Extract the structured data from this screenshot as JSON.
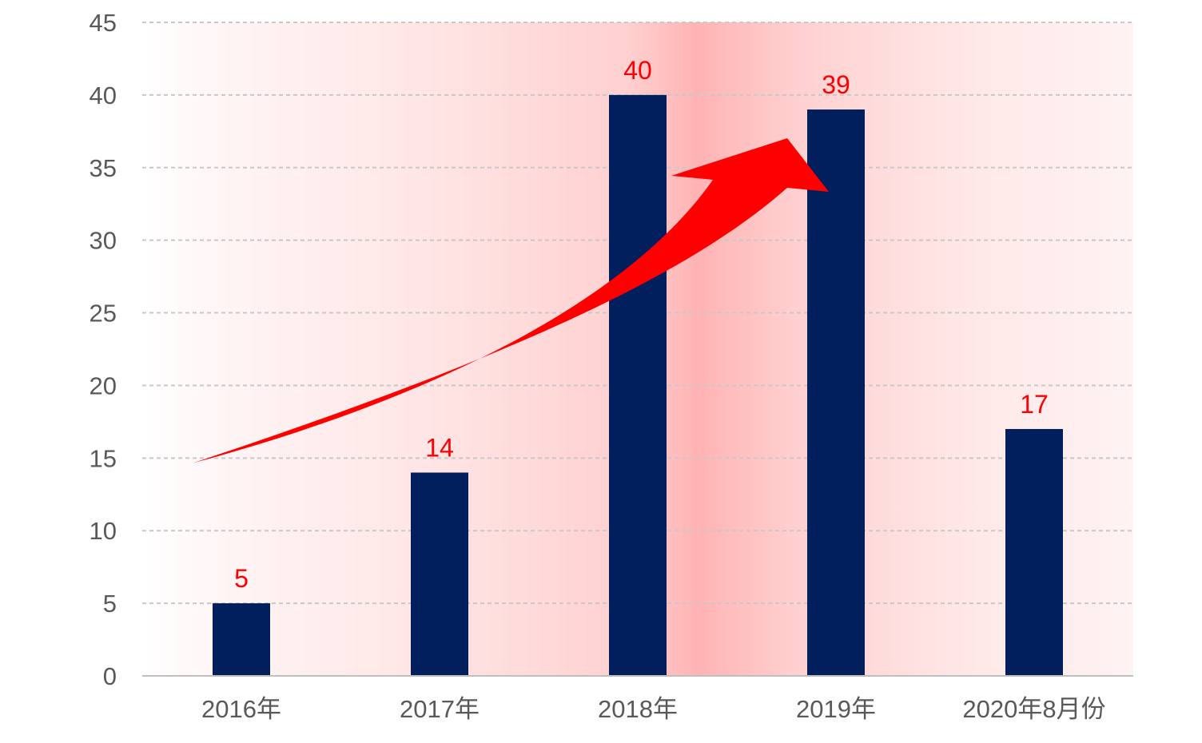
{
  "chart_data": {
    "type": "bar",
    "title": "",
    "xlabel": "",
    "ylabel": "",
    "categories": [
      "2016年",
      "2017年",
      "2018年",
      "2019年",
      "2020年8月份"
    ],
    "values": [
      5,
      14,
      40,
      39,
      17
    ],
    "data_labels": [
      "5",
      "14",
      "40",
      "39",
      "17"
    ],
    "ylim": [
      0,
      45
    ],
    "yticks": [
      0,
      5,
      10,
      15,
      20,
      25,
      30,
      35,
      40,
      45
    ],
    "ytick_labels": [
      "0",
      "5",
      "10",
      "15",
      "20",
      "25",
      "30",
      "35",
      "40",
      "45"
    ],
    "grid": true,
    "legend": "none",
    "annotation": "red upward-curving trend arrow",
    "colors": {
      "bar": "#001f5c",
      "data_label": "#ff0000",
      "arrow": "#ff0000",
      "gridline": "#c8c8c8",
      "axis_text": "#595959",
      "background_glow": "#ffb3b3"
    }
  }
}
